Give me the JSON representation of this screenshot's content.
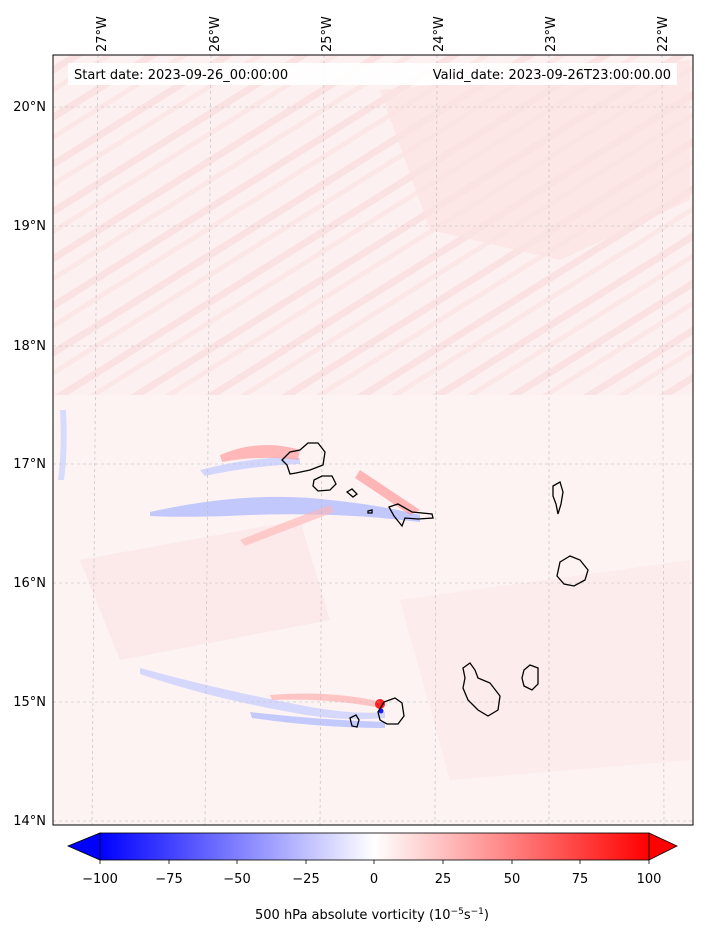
{
  "header": {
    "start_date": "Start date: 2023-09-26_00:00:00",
    "valid_date": "Valid_date: 2023-09-26T23:00:00.00"
  },
  "axes": {
    "lon_labels": [
      "27°W",
      "26°W",
      "25°W",
      "24°W",
      "23°W",
      "22°W"
    ],
    "lat_labels": [
      "20°N",
      "19°N",
      "18°N",
      "17°N",
      "16°N",
      "15°N",
      "14°N"
    ],
    "lon_values": [
      -27,
      -26,
      -25,
      -24,
      -23,
      -22
    ],
    "lat_values": [
      20,
      19,
      18,
      17,
      16,
      15,
      14
    ]
  },
  "colorbar": {
    "ticks": [
      "−100",
      "−75",
      "−50",
      "−25",
      "0",
      "25",
      "50",
      "75",
      "100"
    ],
    "tick_values": [
      -100,
      -75,
      -50,
      -25,
      0,
      25,
      50,
      75,
      100
    ],
    "label": "500 hPa absolute vorticity (10",
    "label_exp1": "−5",
    "label_mid": "s",
    "label_exp2": "−1",
    "label_end": ")",
    "min_color": "#0000ff",
    "zero_color": "#ffffff",
    "max_color": "#ff0000"
  },
  "islands": [
    "Santo Antão",
    "São Vicente",
    "Santa Luzia",
    "São Nicolau",
    "Sal",
    "Boa Vista",
    "Maio",
    "Santiago",
    "Fogo",
    "Brava"
  ]
}
